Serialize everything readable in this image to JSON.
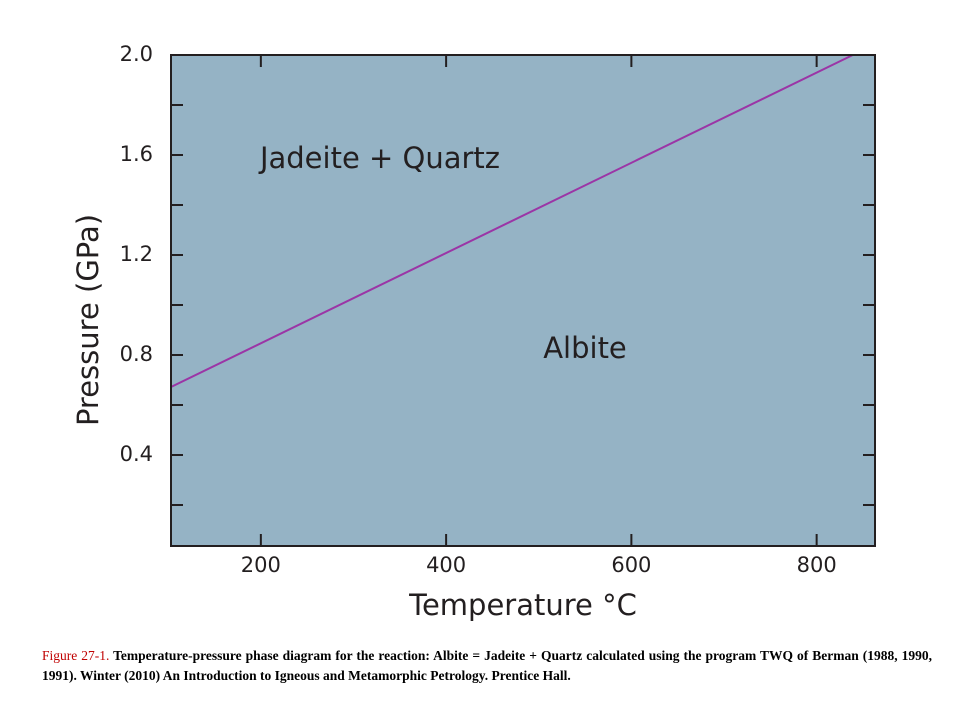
{
  "chart_data": {
    "type": "line",
    "x_label": "Temperature °C",
    "y_label": "Pressure (GPa)",
    "annotations": [
      "Jadeite + Quartz",
      "Albite"
    ],
    "x": [
      103,
      839
    ],
    "series": [
      {
        "color": "#9b35a6",
        "values": [
          0.672,
          2.0
        ]
      }
    ],
    "xlim": [
      103,
      863
    ],
    "ylim": [
      0.036,
      2.0
    ],
    "xticks": [
      200,
      400,
      600,
      800
    ],
    "yticks": [
      0.4,
      0.8,
      1.2,
      1.6,
      {
        "value": 2,
        "label": "2.0"
      }
    ],
    "yminorticks": [
      0.2,
      0.6,
      1.0,
      1.4,
      1.8
    ],
    "background": "#95b3c5"
  },
  "caption": {
    "figure": "Figure 27-1.",
    "text": "Temperature-pressure phase diagram for the reaction: Albite = Jadeite + Quartz calculated using the program TWQ of Berman (1988, 1990, 1991).  Winter (2010) An Introduction to Igneous and Metamorphic Petrology. Prentice Hall."
  }
}
